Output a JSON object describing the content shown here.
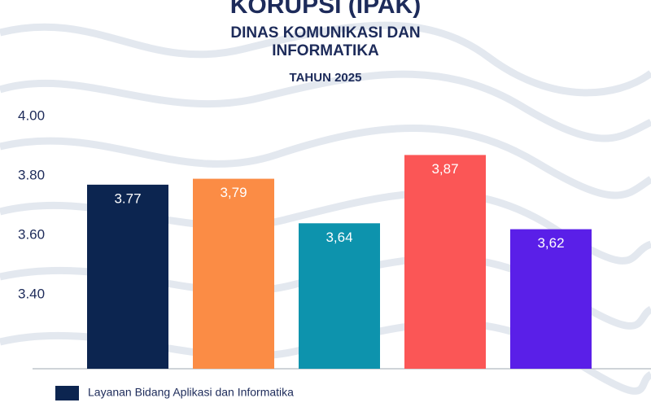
{
  "chart_data": {
    "type": "bar",
    "title": "KORUPSI (IPAK)",
    "subtitle": "DINAS KOMUNIKASI DAN INFORMATIKA",
    "subtitle2": "TAHUN 2025",
    "categories": [
      "Layanan Bidang Aplikasi dan Informatika",
      null,
      null,
      null,
      null
    ],
    "values": [
      3.77,
      3.79,
      3.64,
      3.87,
      3.62
    ],
    "value_labels": [
      "3.77",
      "3,79",
      "3,64",
      "3,87",
      "3,62"
    ],
    "colors": [
      "#0c2550",
      "#fb8c45",
      "#0d93ad",
      "#fb5656",
      "#5a1fe8"
    ],
    "ylim": [
      3.15,
      4.0
    ],
    "yticks": [
      {
        "value": 3.4,
        "label": "3.40"
      },
      {
        "value": 3.6,
        "label": "3.60"
      },
      {
        "value": 3.8,
        "label": "3.80"
      },
      {
        "value": 4.0,
        "label": "4.00"
      }
    ],
    "grid": false
  }
}
